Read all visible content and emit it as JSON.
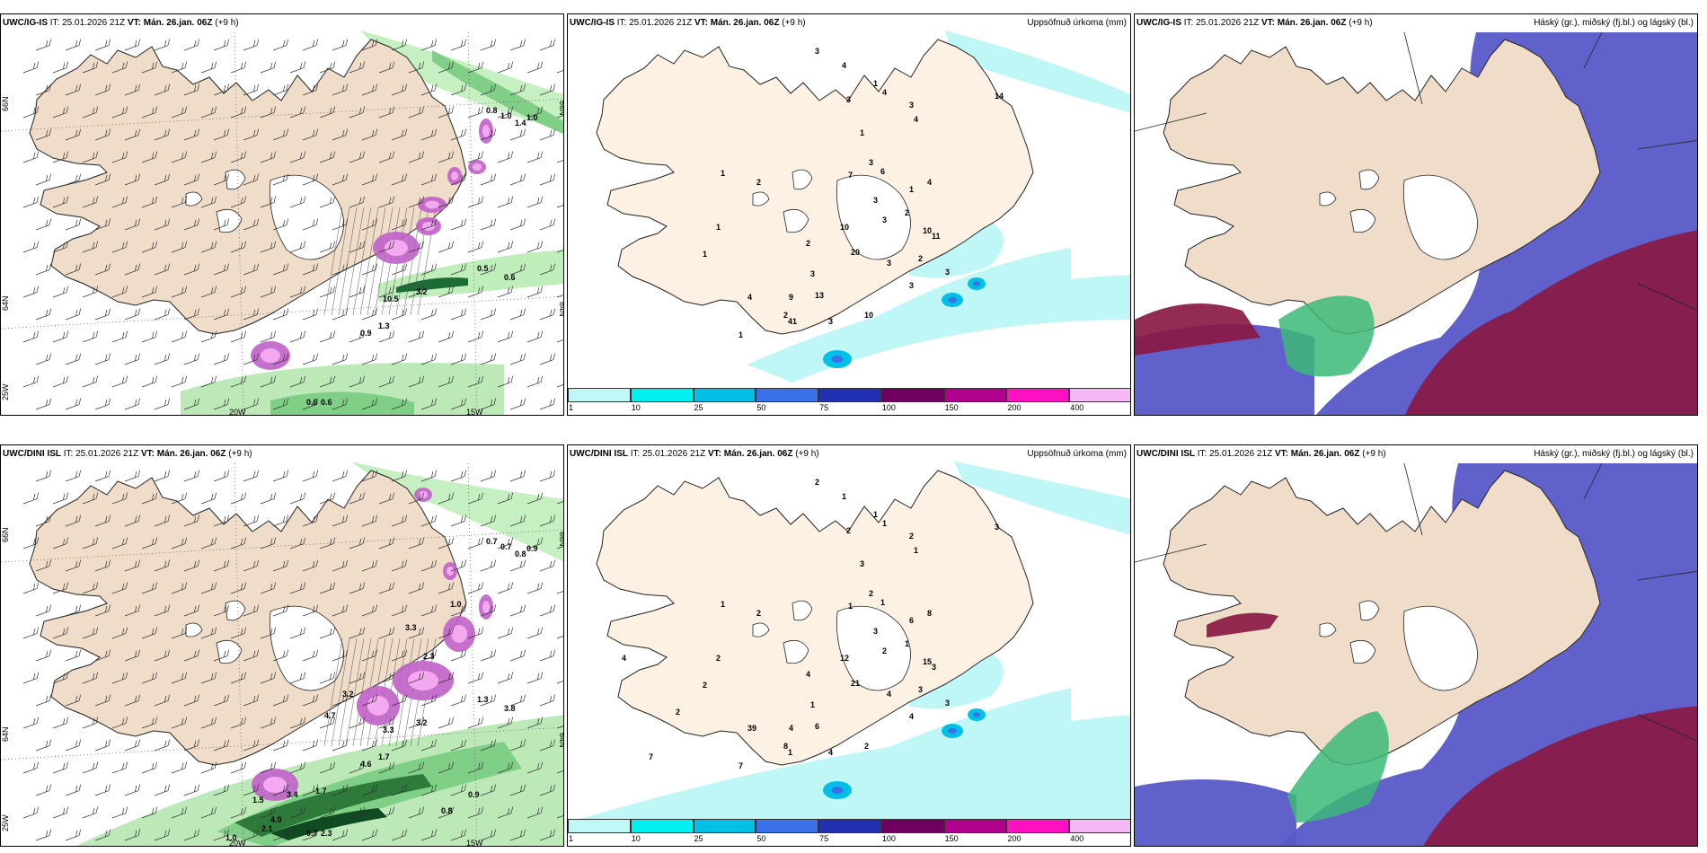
{
  "common": {
    "issue_label": "IT:",
    "issue_time": "25.01.2026 21Z",
    "valid_label": "VT:",
    "valid_time": "Mán. 26.jan. 06Z",
    "lead": "(+9 h)"
  },
  "rows": [
    {
      "model": "UWC/IG-IS"
    },
    {
      "model": "UWC/DINI ISL"
    }
  ],
  "precip": {
    "title": "Uppsöfnuð úrkoma (mm)",
    "colorbar": {
      "ticks": [
        "1",
        "10",
        "25",
        "50",
        "75",
        "100",
        "150",
        "200",
        "400"
      ],
      "colors": [
        "#bff7f7",
        "#00f0f0",
        "#00c0e8",
        "#3a70e8",
        "#2030b0",
        "#700060",
        "#b0008e",
        "#ff10c0",
        "#f7b8f7"
      ]
    }
  },
  "cloud": {
    "title": "Háský (gr.), miðský (fj.bl.) og lágský (bl.)",
    "colors": {
      "high": "#3cb878",
      "mid": "#5858c8",
      "low": "#8a1a44"
    }
  },
  "axes": {
    "lat_labels": [
      "66N",
      "64N",
      "25W"
    ],
    "lon_labels": [
      "20W",
      "15W"
    ],
    "right_labels": [
      "66N",
      "64N"
    ]
  },
  "values": {
    "r1_wind": [
      "0.8",
      "1.0",
      "1.4",
      "1.0",
      "0.5",
      "0.6",
      "10.5",
      "3.2",
      "0.9",
      "1.3",
      "0.6",
      "0.6"
    ],
    "r1_precip": [
      "3",
      "4",
      "1",
      "4",
      "3",
      "4",
      "3",
      "1",
      "3",
      "6",
      "7",
      "3",
      "4",
      "1",
      "2",
      "3",
      "10",
      "10",
      "20",
      "13",
      "3",
      "10",
      "3",
      "9",
      "11",
      "14",
      "3",
      "2",
      "3",
      "3",
      "2",
      "1",
      "41",
      "4",
      "2",
      "2",
      "1",
      "1",
      "1"
    ],
    "r2_wind": [
      "0.7",
      "0.7",
      "0.8",
      "0.9",
      "1.3",
      "3.8",
      "3.3",
      "3.2",
      "4.6",
      "1.7",
      "0.7",
      "2.3",
      "4.0",
      "3.2",
      "3.3",
      "1.0",
      "2.3",
      "4.7",
      "1.5",
      "3.4",
      "1.7",
      "1.0",
      "2.1",
      "0.9",
      "0.8"
    ],
    "r2_precip": [
      "2",
      "1",
      "1",
      "1",
      "2",
      "1",
      "2",
      "3",
      "2",
      "1",
      "1",
      "3",
      "8",
      "6",
      "1",
      "2",
      "12",
      "15",
      "21",
      "6",
      "4",
      "2",
      "1",
      "4",
      "3",
      "3",
      "3",
      "3",
      "4",
      "4",
      "2",
      "2",
      "1",
      "39",
      "4",
      "8",
      "7",
      "1",
      "2",
      "2",
      "4",
      "7"
    ]
  }
}
